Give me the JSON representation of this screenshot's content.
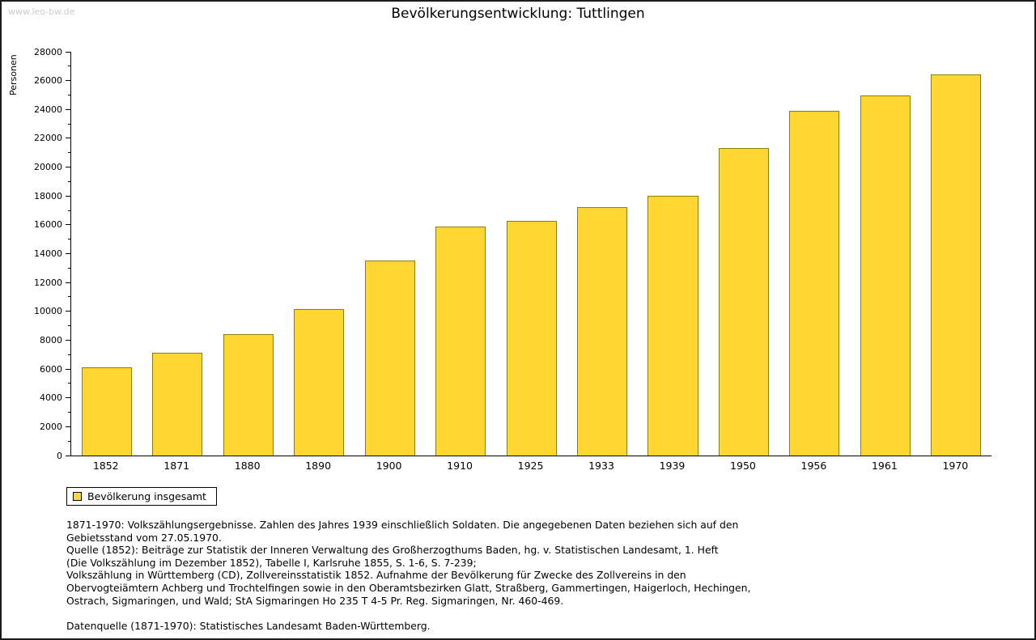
{
  "watermark": "www.leo-bw.de",
  "chart_data": {
    "type": "bar",
    "title": "Bevölkerungsentwicklung: Tuttlingen",
    "xlabel": "",
    "ylabel": "Personen",
    "ylim": [
      0,
      28000
    ],
    "ytick_step": 2000,
    "grid": false,
    "legend_position": "bottom-left",
    "bar_color": "#ffd632",
    "bar_border_color": "#8f7d00",
    "categories": [
      "1852",
      "1871",
      "1880",
      "1890",
      "1900",
      "1910",
      "1925",
      "1933",
      "1939",
      "1950",
      "1956",
      "1961",
      "1970"
    ],
    "values": [
      6100,
      7150,
      8400,
      10150,
      13550,
      15900,
      16300,
      17250,
      18000,
      21350,
      23900,
      24950,
      26450
    ],
    "legend": [
      {
        "label": "Bevölkerung insgesamt",
        "color": "#ffd632"
      }
    ]
  },
  "footnote_lines": [
    "1871-1970: Volkszählungsergebnisse. Zahlen des Jahres 1939 einschließlich Soldaten. Die angegebenen Daten beziehen sich auf den",
    "Gebietsstand vom 27.05.1970.",
    "Quelle (1852): Beiträge zur Statistik der Inneren Verwaltung des Großherzogthums Baden, hg. v. Statistischen Landesamt, 1. Heft",
    "(Die Volkszählung im Dezember 1852), Tabelle I, Karlsruhe 1855, S. 1-6, S. 7-239;",
    "Volkszählung in Württemberg (CD), Zollvereinsstatistik 1852. Aufnahme der Bevölkerung für Zwecke des Zollvereins in den",
    "Obervogteiämtern Achberg und Trochtelfingen sowie in den Oberamtsbezirken Glatt, Straßberg, Gammertingen, Haigerloch, Hechingen,",
    "Ostrach, Sigmaringen, und Wald; StA Sigmaringen Ho 235 T 4-5 Pr. Reg. Sigmaringen, Nr. 460-469.",
    "",
    "Datenquelle (1871-1970): Statistisches Landesamt Baden-Württemberg."
  ]
}
